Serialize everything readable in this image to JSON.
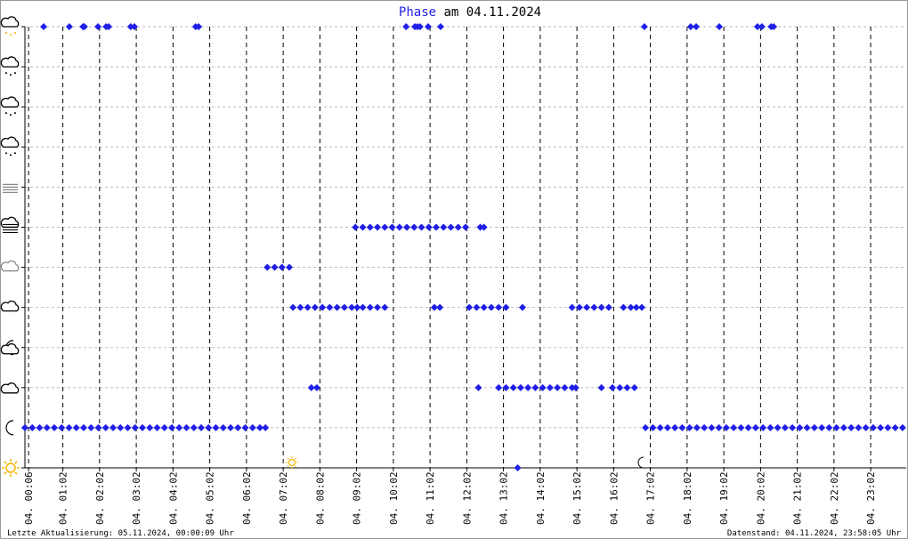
{
  "chart_data": {
    "type": "scatter",
    "title": [
      "Phase",
      "am 04.11.2024"
    ],
    "footer_left": "Letzte Aktualisierung: 05.11.2024, 00:00:09 Uhr",
    "footer_right": "Datenstand: 04.11.2024, 23:58:05 Uhr",
    "color": "#1f1fe6",
    "xlim": [
      0,
      24
    ],
    "ylim": [
      0,
      11
    ],
    "yticks": [
      0,
      1,
      2,
      3,
      4,
      5,
      6,
      7,
      8,
      9,
      10,
      11
    ],
    "xticks": [
      {
        "value": 0.1,
        "label": "04. 00:06"
      },
      {
        "value": 1.033,
        "label": "04. 01:02"
      },
      {
        "value": 2.033,
        "label": "04. 02:02"
      },
      {
        "value": 3.033,
        "label": "04. 03:02"
      },
      {
        "value": 4.033,
        "label": "04. 04:02"
      },
      {
        "value": 5.033,
        "label": "04. 05:02"
      },
      {
        "value": 6.033,
        "label": "04. 06:02"
      },
      {
        "value": 7.033,
        "label": "04. 07:02"
      },
      {
        "value": 8.033,
        "label": "04. 08:02"
      },
      {
        "value": 9.033,
        "label": "04. 09:02"
      },
      {
        "value": 10.033,
        "label": "04. 10:02"
      },
      {
        "value": 11.033,
        "label": "04. 11:02"
      },
      {
        "value": 12.033,
        "label": "04. 12:02"
      },
      {
        "value": 13.033,
        "label": "04. 13:02"
      },
      {
        "value": 14.033,
        "label": "04. 14:02"
      },
      {
        "value": 15.033,
        "label": "04. 15:02"
      },
      {
        "value": 16.033,
        "label": "04. 16:02"
      },
      {
        "value": 17.033,
        "label": "04. 17:02"
      },
      {
        "value": 18.033,
        "label": "04. 18:02"
      },
      {
        "value": 19.033,
        "label": "04. 19:02"
      },
      {
        "value": 20.033,
        "label": "04. 20:02"
      },
      {
        "value": 21.033,
        "label": "04. 21:02"
      },
      {
        "value": 22.033,
        "label": "04. 22:02"
      },
      {
        "value": 23.033,
        "label": "04. 23:02"
      }
    ],
    "sunrise": 7.27,
    "sunset": 16.8,
    "x": [
      0.0,
      0.2,
      0.4,
      0.6,
      0.8,
      1.0,
      1.2,
      1.4,
      1.6,
      1.8,
      2.0,
      2.2,
      2.4,
      2.6,
      2.8,
      3.0,
      3.2,
      3.4,
      3.6,
      3.8,
      4.0,
      4.2,
      4.4,
      4.6,
      4.8,
      5.0,
      5.2,
      5.4,
      5.6,
      5.8,
      6.0,
      6.2,
      6.4,
      6.55,
      0.51,
      1.21,
      1.58,
      1.62,
      1.99,
      2.21,
      2.28,
      2.88,
      2.98,
      4.65,
      4.73,
      10.38,
      10.62,
      10.69,
      10.76,
      10.98,
      11.32,
      16.87,
      18.13,
      18.28,
      18.91,
      19.95,
      20.07,
      20.32,
      20.39,
      6.6,
      6.8,
      7.0,
      7.2,
      7.3,
      7.5,
      7.7,
      7.9,
      8.1,
      8.3,
      8.5,
      8.7,
      8.9,
      9.05,
      9.2,
      9.4,
      9.6,
      9.8,
      11.15,
      11.3,
      12.1,
      12.3,
      12.5,
      12.7,
      12.9,
      13.1,
      13.55,
      14.9,
      15.1,
      15.3,
      15.5,
      15.7,
      15.9,
      16.3,
      16.5,
      16.65,
      16.8,
      7.8,
      7.95,
      12.35,
      12.9,
      13.1,
      13.3,
      13.5,
      13.7,
      13.9,
      14.1,
      14.3,
      14.5,
      14.7,
      14.9,
      15.0,
      15.7,
      16.0,
      16.2,
      16.4,
      16.6,
      9.0,
      9.2,
      9.4,
      9.6,
      9.8,
      10.0,
      10.2,
      10.4,
      10.6,
      10.8,
      11.0,
      11.2,
      11.4,
      11.6,
      11.8,
      12.0,
      12.4,
      12.5,
      13.42,
      16.9,
      17.1,
      17.3,
      17.5,
      17.7,
      17.9,
      18.1,
      18.3,
      18.5,
      18.7,
      18.9,
      19.1,
      19.3,
      19.5,
      19.7,
      19.9,
      20.1,
      20.3,
      20.5,
      20.7,
      20.9,
      21.1,
      21.3,
      21.5,
      21.7,
      21.9,
      22.1,
      22.3,
      22.5,
      22.7,
      22.9,
      23.1,
      23.3,
      23.5,
      23.7,
      23.9
    ],
    "values": [
      1,
      1,
      1,
      1,
      1,
      1,
      1,
      1,
      1,
      1,
      1,
      1,
      1,
      1,
      1,
      1,
      1,
      1,
      1,
      1,
      1,
      1,
      1,
      1,
      1,
      1,
      1,
      1,
      1,
      1,
      1,
      1,
      1,
      1,
      11,
      11,
      11,
      11,
      11,
      11,
      11,
      11,
      11,
      11,
      11,
      11,
      11,
      11,
      11,
      11,
      11,
      11,
      11,
      11,
      11,
      11,
      11,
      11,
      11,
      5,
      5,
      5,
      5,
      4,
      4,
      4,
      4,
      4,
      4,
      4,
      4,
      4,
      4,
      4,
      4,
      4,
      4,
      4,
      4,
      4,
      4,
      4,
      4,
      4,
      4,
      4,
      4,
      4,
      4,
      4,
      4,
      4,
      4,
      4,
      4,
      4,
      2,
      2,
      2,
      2,
      2,
      2,
      2,
      2,
      2,
      2,
      2,
      2,
      2,
      2,
      2,
      2,
      2,
      2,
      2,
      2,
      6,
      6,
      6,
      6,
      6,
      6,
      6,
      6,
      6,
      6,
      6,
      6,
      6,
      6,
      6,
      6,
      6,
      6,
      0,
      1,
      1,
      1,
      1,
      1,
      1,
      1,
      1,
      1,
      1,
      1,
      1,
      1,
      1,
      1,
      1,
      1,
      1,
      1,
      1,
      1,
      1,
      1,
      1,
      1,
      1,
      1,
      1,
      1,
      1,
      1,
      1,
      1,
      1,
      1,
      1
    ]
  }
}
